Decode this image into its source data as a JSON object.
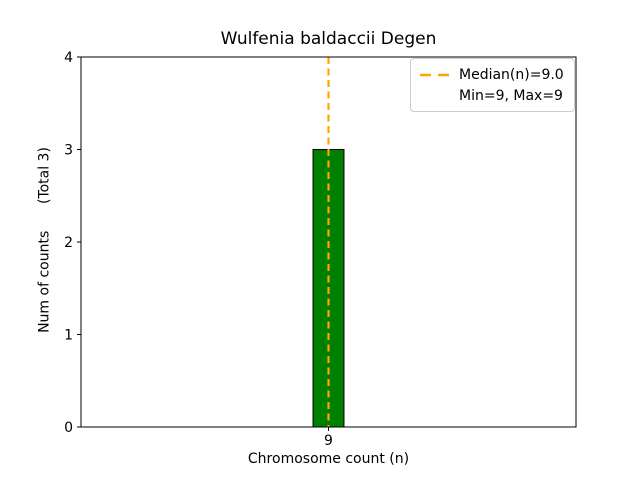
{
  "chart_data": {
    "type": "bar",
    "title": "Wulfenia baldaccii Degen",
    "xlabel": "Chromosome count (n)",
    "ylabel": "Num of counts      (Total 3)",
    "categories": [
      9
    ],
    "values": [
      3
    ],
    "total_counts": 3,
    "bar_width": 0.5,
    "xlim": [
      5,
      13
    ],
    "ylim": [
      0,
      4
    ],
    "xticks": [
      9
    ],
    "yticks": [
      0,
      1,
      2,
      3,
      4
    ],
    "grid": false,
    "legend_position": "upper right",
    "median_line": {
      "x": 9,
      "style": "dashed",
      "label": "Median(n)=9.0"
    },
    "stats_label": "Min=9, Max=9"
  },
  "colors": {
    "bar_fill": "#008000",
    "bar_edge": "#000000",
    "median_line": "#FFA500",
    "axes": "#000000",
    "legend_border": "#cccccc",
    "background": "#ffffff"
  }
}
